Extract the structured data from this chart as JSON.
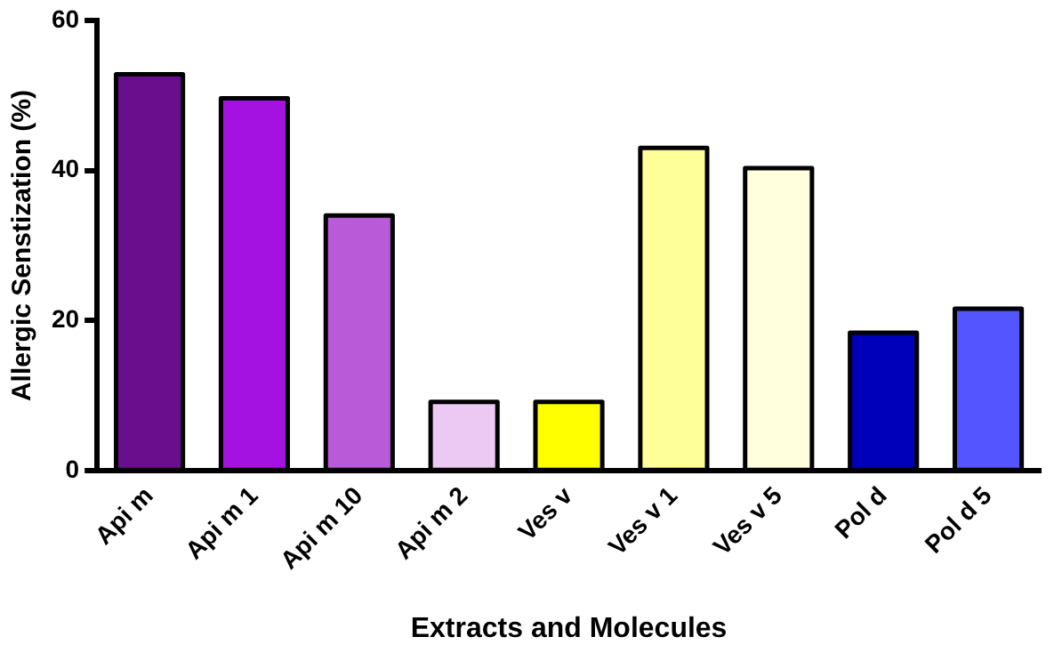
{
  "chart_data": {
    "type": "bar",
    "xlabel": "Extracts and Molecules",
    "ylabel": "Allergic Senstization (%)",
    "categories": [
      "Api m",
      "Api m 1",
      "Api m 10",
      "Api m 2",
      "Ves v",
      "Ves v 1",
      "Ves v 5",
      "Pol d",
      "Pol d 5"
    ],
    "values": [
      52.8,
      49.6,
      34,
      9.2,
      9.2,
      43,
      40.3,
      18.4,
      21.6
    ],
    "colors": [
      "#6a0e8e",
      "#a312e0",
      "#b95ad8",
      "#ebc9f2",
      "#ffff00",
      "#ffff99",
      "#ffffdd",
      "#0000bb",
      "#5555ff"
    ],
    "ylim": [
      0,
      60
    ],
    "yticks": [
      0,
      20,
      40,
      60
    ],
    "grid": false,
    "legend": false
  }
}
